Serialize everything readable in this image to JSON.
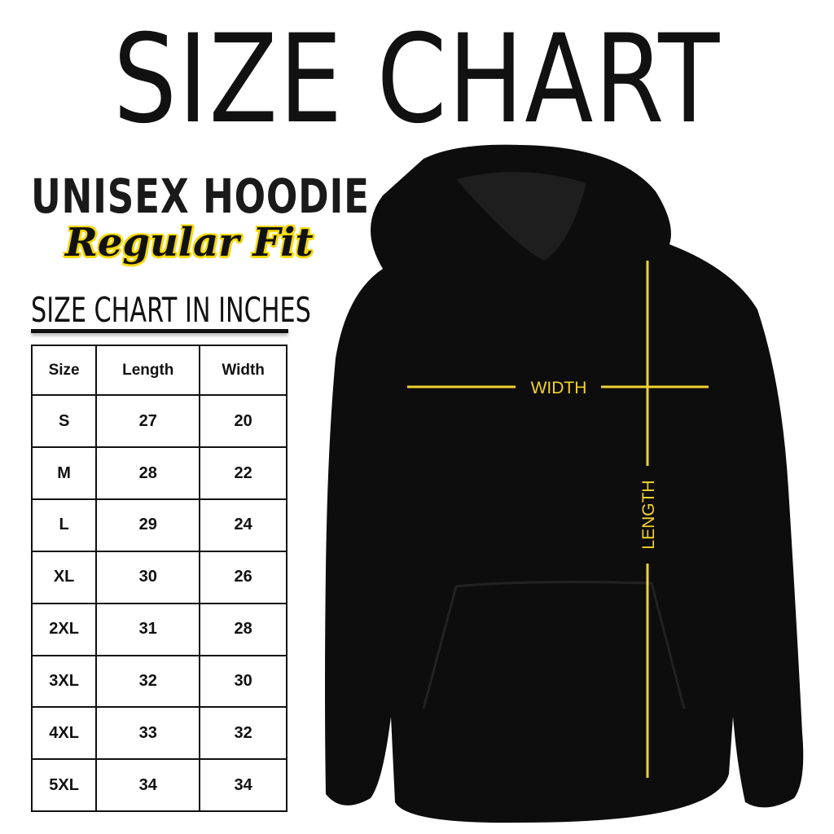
{
  "title": "SIZE CHART",
  "product": "UNISEX HOODIE",
  "fit": "Regular Fit",
  "unit_heading": "SIZE CHART IN INCHES",
  "table": {
    "headers": [
      "Size",
      "Length",
      "Width"
    ],
    "rows": [
      [
        "S",
        "27",
        "20"
      ],
      [
        "M",
        "28",
        "22"
      ],
      [
        "L",
        "29",
        "24"
      ],
      [
        "XL",
        "30",
        "26"
      ],
      [
        "2XL",
        "31",
        "28"
      ],
      [
        "3XL",
        "32",
        "30"
      ],
      [
        "4XL",
        "33",
        "32"
      ],
      [
        "5XL",
        "34",
        "34"
      ]
    ]
  },
  "diagram": {
    "width_label": "WIDTH",
    "length_label": "LENGTH",
    "line_color": "#f2d230",
    "garment_color": "#0d0d0d"
  }
}
